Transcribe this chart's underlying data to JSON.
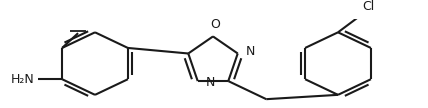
{
  "background_color": "#ffffff",
  "line_color": "#1a1a1a",
  "line_width": 1.5,
  "figsize": [
    4.28,
    1.08
  ],
  "dpi": 100,
  "xlim": [
    0,
    428
  ],
  "ylim": [
    0,
    108
  ]
}
